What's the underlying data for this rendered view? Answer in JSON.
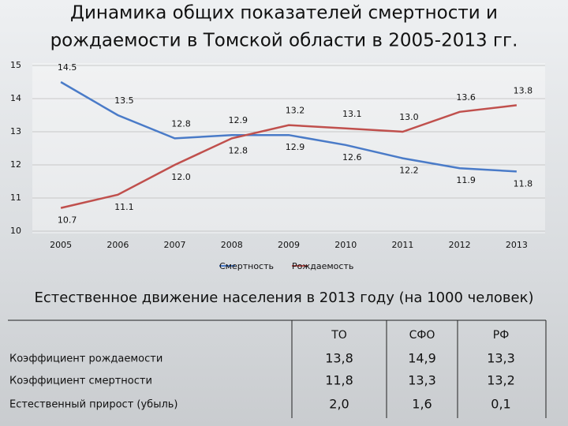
{
  "chart_data": {
    "type": "line",
    "title": [
      "Динамика общих показателей смертности и",
      "рождаемости в Томской области в 2005-2013 гг."
    ],
    "categories": [
      "2005",
      "2006",
      "2007",
      "2008",
      "2009",
      "2010",
      "2011",
      "2012",
      "2013"
    ],
    "series": [
      {
        "name": "Смертность",
        "color": "#4a7bc8",
        "values": [
          14.5,
          13.5,
          12.8,
          12.9,
          12.9,
          12.6,
          12.2,
          11.9,
          11.8
        ],
        "value_labels": [
          "14.5",
          "13.5",
          "12.8",
          "12.9",
          "12.9",
          "12.6",
          "12.2",
          "11.9",
          "11.8"
        ]
      },
      {
        "name": "Рождаемость",
        "color": "#c0504d",
        "values": [
          10.7,
          11.1,
          12.0,
          12.8,
          13.2,
          13.1,
          13.0,
          13.6,
          13.8
        ],
        "value_labels": [
          "10.7",
          "11.1",
          "12.0",
          "12.8",
          "13.2",
          "13.1",
          "13.0",
          "13.6",
          "13.8"
        ]
      }
    ],
    "ylim": [
      10,
      15
    ],
    "yticks": [
      10,
      11,
      12,
      13,
      14,
      15
    ],
    "grid": true,
    "legend": "bottom"
  },
  "table": {
    "caption": "Естественное движение населения в 2013 году (на 1000 человек)",
    "header": [
      "",
      "ТО",
      "СФО",
      "РФ"
    ],
    "rows": [
      [
        "Коэффициент рождаемости",
        "13,8",
        "14,9",
        "13,3"
      ],
      [
        "Коэффициент смертности",
        "11,8",
        "13,3",
        "13,2"
      ],
      [
        "Естественный прирост (убыль)",
        "2,0",
        "1,6",
        "0,1"
      ]
    ]
  }
}
